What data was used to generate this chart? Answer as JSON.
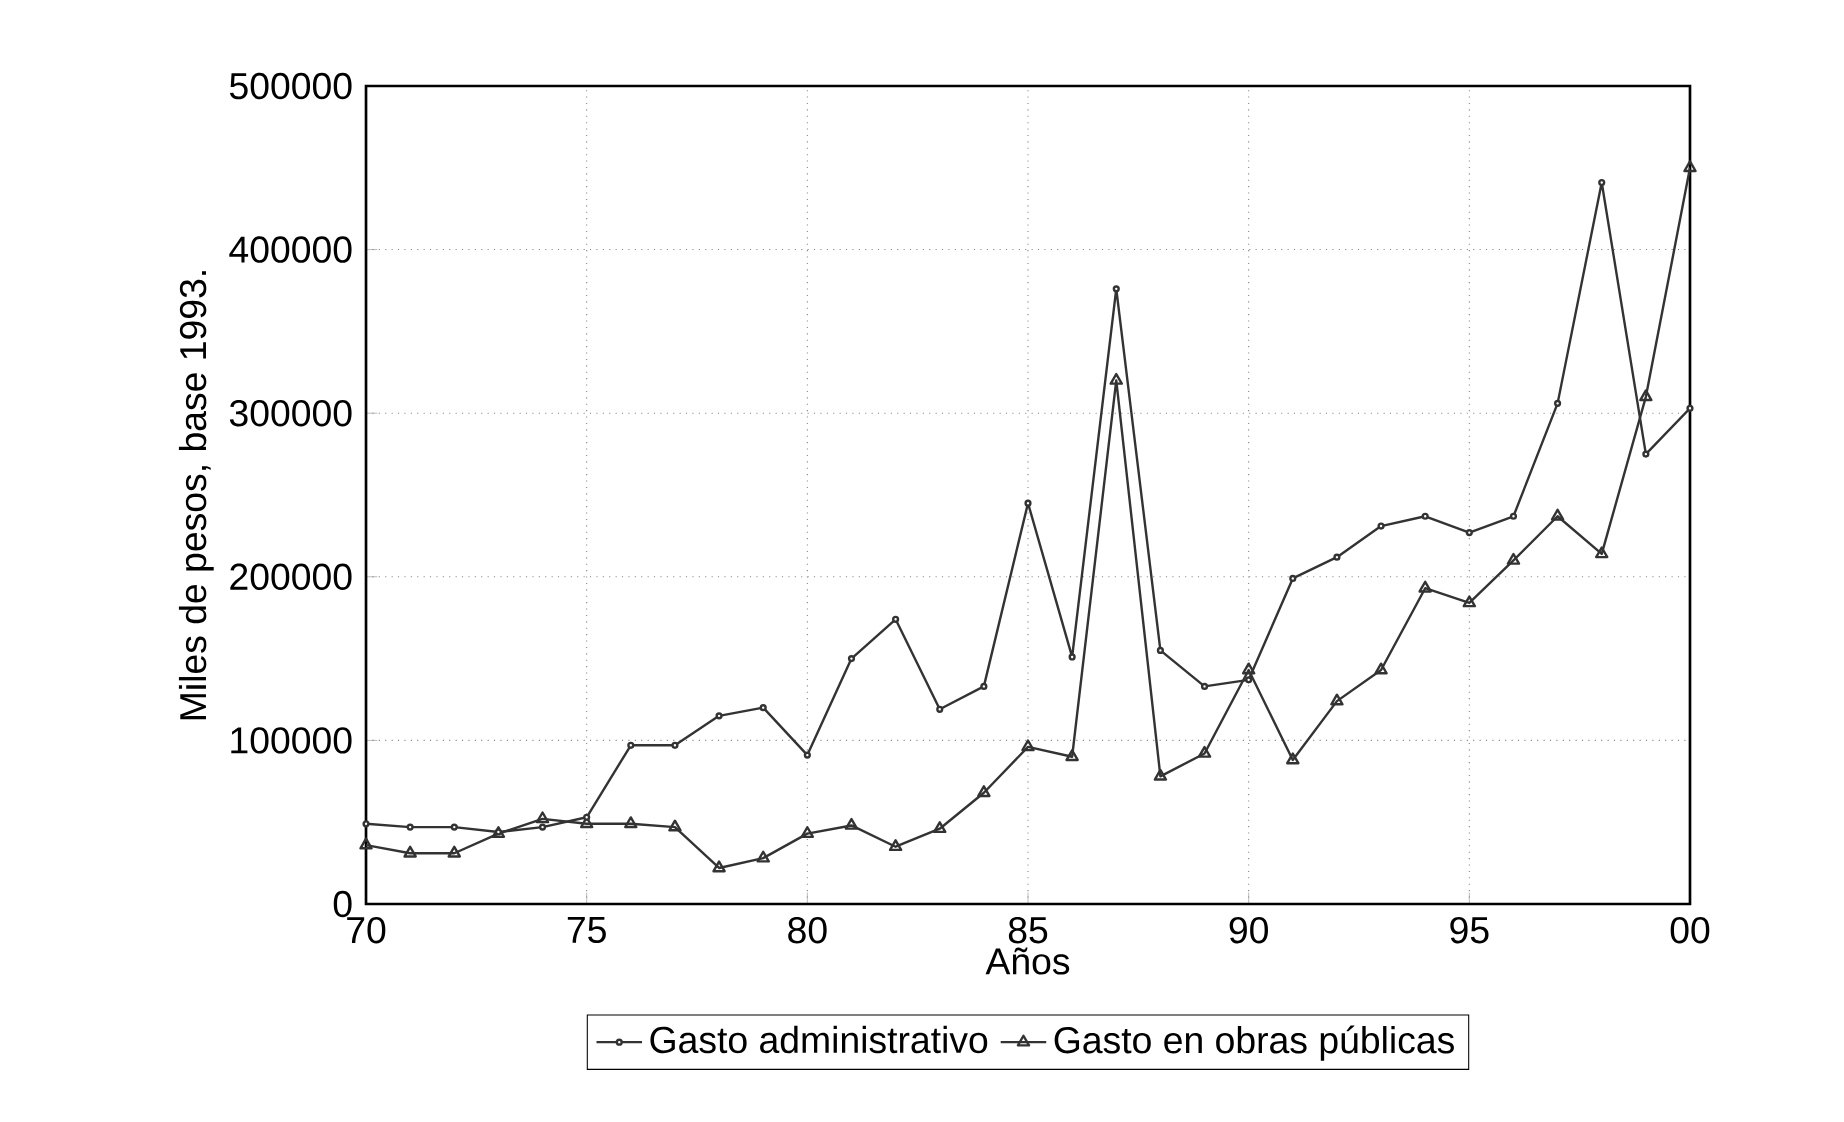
{
  "chart_data": {
    "type": "line",
    "xlabel": "Años",
    "ylabel": "Miles de pesos, base 1993.",
    "x": [
      1970,
      1971,
      1972,
      1973,
      1974,
      1975,
      1976,
      1977,
      1978,
      1979,
      1980,
      1981,
      1982,
      1983,
      1984,
      1985,
      1986,
      1987,
      1988,
      1989,
      1990,
      1991,
      1992,
      1993,
      1994,
      1995,
      1996,
      1997,
      1998,
      1999,
      2000
    ],
    "series": [
      {
        "name": "Gasto administrativo",
        "color": "#333333",
        "marker": "circle",
        "values": [
          49000,
          47000,
          47000,
          44000,
          47000,
          53000,
          97000,
          97000,
          115000,
          120000,
          91000,
          150000,
          174000,
          119000,
          133000,
          245000,
          151000,
          376000,
          155000,
          133000,
          137000,
          199000,
          212000,
          231000,
          237000,
          227000,
          237000,
          306000,
          441000,
          275000,
          303000
        ]
      },
      {
        "name": "Gasto en obras públicas",
        "color": "#333333",
        "marker": "triangle",
        "values": [
          36000,
          31000,
          31000,
          43000,
          52000,
          49000,
          49000,
          47000,
          22000,
          28000,
          43000,
          48000,
          35000,
          46000,
          68000,
          96000,
          90000,
          320000,
          78000,
          92000,
          143000,
          88000,
          124000,
          143000,
          193000,
          184000,
          210000,
          237000,
          214000,
          310000,
          450000
        ]
      }
    ],
    "xlim": [
      1970,
      2000
    ],
    "xticks": [
      {
        "value": 1970,
        "label": "70"
      },
      {
        "value": 1975,
        "label": "75"
      },
      {
        "value": 1980,
        "label": "80"
      },
      {
        "value": 1985,
        "label": "85"
      },
      {
        "value": 1990,
        "label": "90"
      },
      {
        "value": 1995,
        "label": "95"
      },
      {
        "value": 2000,
        "label": "00"
      }
    ],
    "ylim": [
      0,
      500000
    ],
    "yticks": [
      0,
      100000,
      200000,
      300000,
      400000,
      500000
    ],
    "grid": true,
    "legend": "bottom",
    "line_style": "solid"
  }
}
